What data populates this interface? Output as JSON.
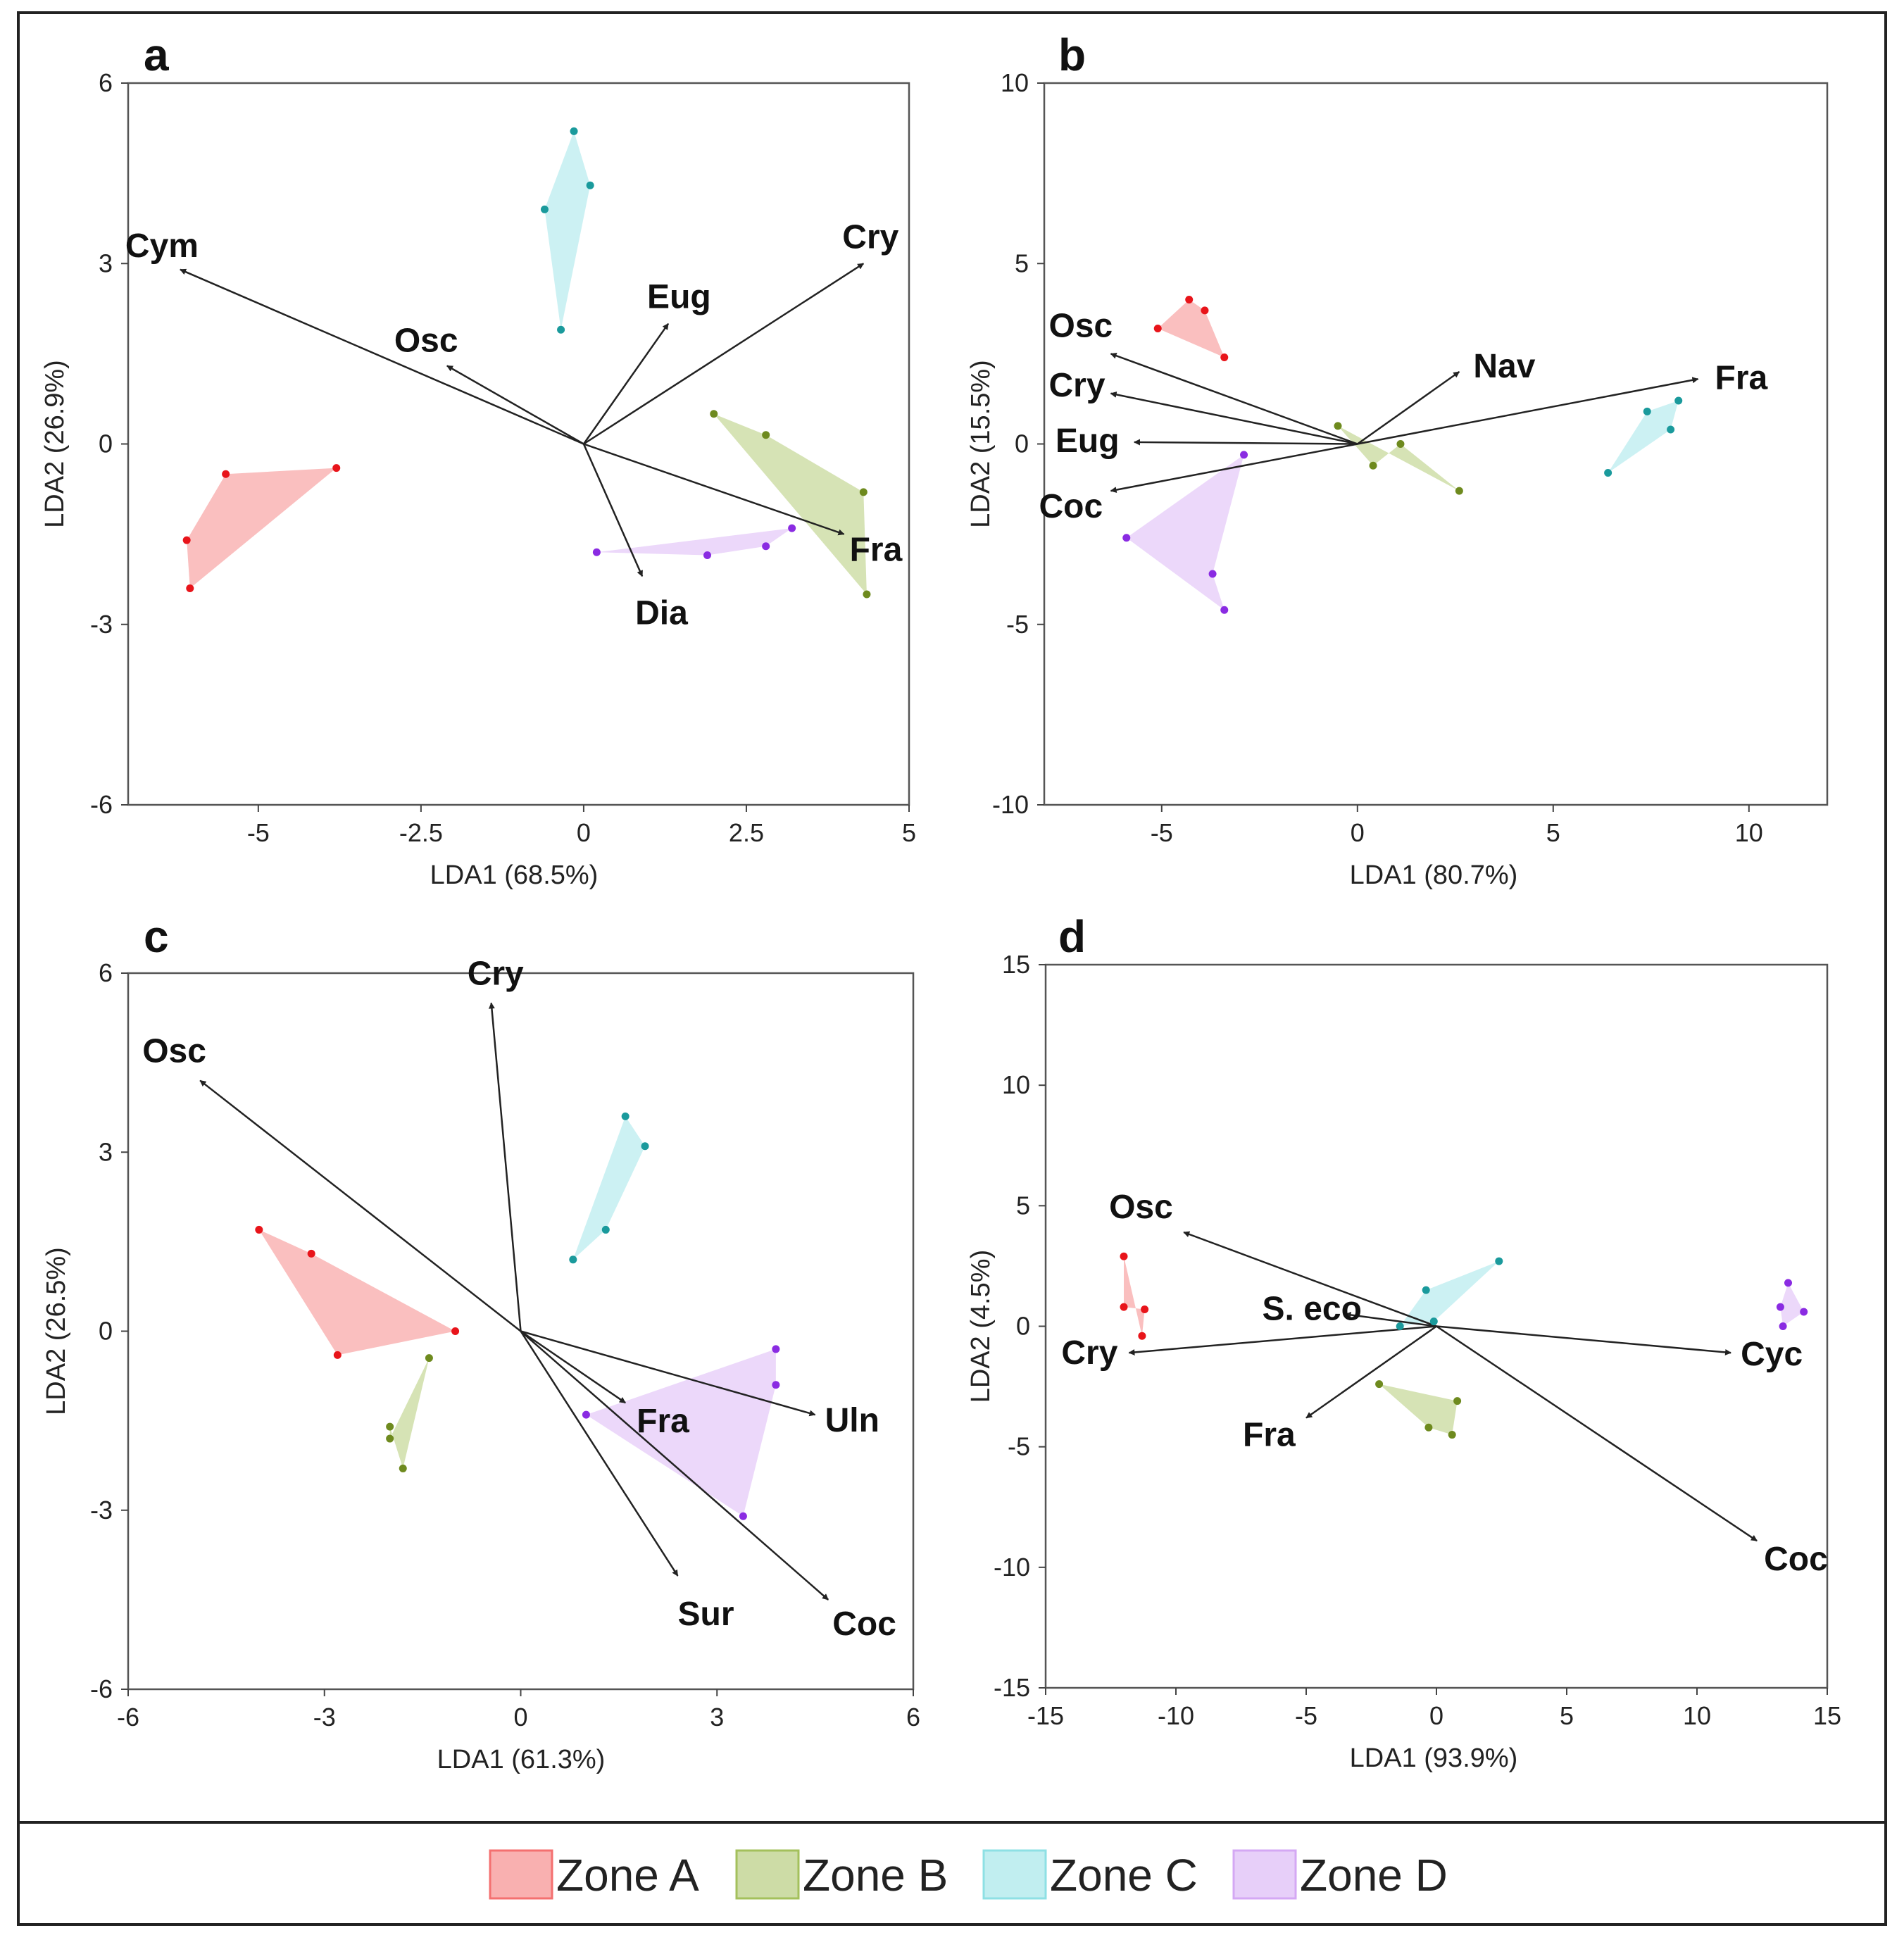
{
  "colors": {
    "Zone A": "#f47070",
    "Zone B": "#a4c05c",
    "Zone C": "#8ee0e4",
    "Zone D": "#d4a8f4",
    "Zone A point": "#e8141a",
    "Zone B point": "#6e8a1e",
    "Zone C point": "#1a9a9c",
    "Zone D point": "#8a2be2"
  },
  "legend": {
    "items": [
      "Zone A",
      "Zone B",
      "Zone C",
      "Zone D"
    ]
  },
  "chart_data": [
    {
      "type": "scatter",
      "panel": "a",
      "xlabel": "LDA1 (68.5%)",
      "ylabel": "LDA2 (26.9%)",
      "xlim": [
        -7,
        5
      ],
      "ylim": [
        -6,
        6
      ],
      "xticks": [
        -5,
        -2.5,
        0,
        2.5,
        5
      ],
      "xticklabels": [
        "-5",
        "-2.5",
        "0",
        "2.5",
        "5"
      ],
      "yticks": [
        -6,
        -3,
        0,
        3,
        6
      ],
      "yticklabels": [
        "-6",
        "-3",
        "0",
        "3",
        "6"
      ],
      "vectors": [
        {
          "name": "Cym",
          "x": -6.2,
          "y": 2.9
        },
        {
          "name": "Osc",
          "x": -2.1,
          "y": 1.3
        },
        {
          "name": "Eug",
          "x": 1.3,
          "y": 2.0
        },
        {
          "name": "Cry",
          "x": 4.3,
          "y": 3.0
        },
        {
          "name": "Fra",
          "x": 4.0,
          "y": -1.5
        },
        {
          "name": "Dia",
          "x": 0.9,
          "y": -2.2
        }
      ],
      "series": [
        {
          "name": "Zone A",
          "points": [
            [
              -6.1,
              -1.6
            ],
            [
              -6.05,
              -2.4
            ],
            [
              -3.8,
              -0.4
            ],
            [
              -5.5,
              -0.5
            ]
          ]
        },
        {
          "name": "Zone B",
          "points": [
            [
              2.0,
              0.5
            ],
            [
              2.8,
              0.15
            ],
            [
              4.3,
              -0.8
            ],
            [
              4.35,
              -2.5
            ]
          ]
        },
        {
          "name": "Zone C",
          "points": [
            [
              -0.6,
              3.9
            ],
            [
              -0.15,
              5.2
            ],
            [
              0.1,
              4.3
            ],
            [
              -0.35,
              1.9
            ]
          ]
        },
        {
          "name": "Zone D",
          "points": [
            [
              0.2,
              -1.8
            ],
            [
              1.9,
              -1.85
            ],
            [
              2.8,
              -1.7
            ],
            [
              3.2,
              -1.4
            ]
          ]
        }
      ]
    },
    {
      "type": "scatter",
      "panel": "b",
      "xlabel": "LDA1 (80.7%)",
      "ylabel": "LDA2 (15.5%)",
      "xlim": [
        -8,
        12
      ],
      "ylim": [
        -10,
        10
      ],
      "xticks": [
        -5,
        0,
        5,
        10
      ],
      "xticklabels": [
        "-5",
        "0",
        "5",
        "10"
      ],
      "yticks": [
        -10,
        -5,
        0,
        5,
        10
      ],
      "yticklabels": [
        "-10",
        "-5",
        "0",
        "5",
        "10"
      ],
      "vectors": [
        {
          "name": "Osc",
          "x": -6.3,
          "y": 2.5
        },
        {
          "name": "Cry",
          "x": -6.3,
          "y": 1.4
        },
        {
          "name": "Eug",
          "x": -5.7,
          "y": 0.05
        },
        {
          "name": "Coc",
          "x": -6.3,
          "y": -1.3
        },
        {
          "name": "Nav",
          "x": 2.6,
          "y": 2.0
        },
        {
          "name": "Fra",
          "x": 8.7,
          "y": 1.8
        }
      ],
      "series": [
        {
          "name": "Zone A",
          "points": [
            [
              -5.1,
              3.2
            ],
            [
              -4.3,
              4.0
            ],
            [
              -3.9,
              3.7
            ],
            [
              -3.4,
              2.4
            ]
          ]
        },
        {
          "name": "Zone B",
          "points": [
            [
              -0.5,
              0.5
            ],
            [
              0.4,
              -0.6
            ],
            [
              1.1,
              0.0
            ],
            [
              2.6,
              -1.3
            ]
          ]
        },
        {
          "name": "Zone C",
          "points": [
            [
              6.4,
              -0.8
            ],
            [
              7.4,
              0.9
            ],
            [
              8.2,
              1.2
            ],
            [
              8.0,
              0.4
            ]
          ]
        },
        {
          "name": "Zone D",
          "points": [
            [
              -5.9,
              -2.6
            ],
            [
              -2.9,
              -0.3
            ],
            [
              -3.7,
              -3.6
            ],
            [
              -3.4,
              -4.6
            ]
          ]
        }
      ]
    },
    {
      "type": "scatter",
      "panel": "c",
      "xlabel": "LDA1 (61.3%)",
      "ylabel": "LDA2 (26.5%)",
      "xlim": [
        -6,
        6
      ],
      "ylim": [
        -6,
        6
      ],
      "xticks": [
        -6,
        -3,
        0,
        3,
        6
      ],
      "xticklabels": [
        "-6",
        "-3",
        "0",
        "3",
        "6"
      ],
      "yticks": [
        -6,
        -3,
        0,
        3,
        6
      ],
      "yticklabels": [
        "-6",
        "-3",
        "0",
        "3",
        "6"
      ],
      "vectors": [
        {
          "name": "Osc",
          "x": -4.9,
          "y": 4.2
        },
        {
          "name": "Cry",
          "x": -0.45,
          "y": 5.5
        },
        {
          "name": "Fra",
          "x": 1.6,
          "y": -1.2
        },
        {
          "name": "Uln",
          "x": 4.5,
          "y": -1.4
        },
        {
          "name": "Sur",
          "x": 2.4,
          "y": -4.1
        },
        {
          "name": "Coc",
          "x": 4.7,
          "y": -4.5
        }
      ],
      "series": [
        {
          "name": "Zone A",
          "points": [
            [
              -4.0,
              1.7
            ],
            [
              -3.2,
              1.3
            ],
            [
              -1.0,
              0.0
            ],
            [
              -2.8,
              -0.4
            ]
          ]
        },
        {
          "name": "Zone B",
          "points": [
            [
              -2.0,
              -1.6
            ],
            [
              -2.0,
              -1.8
            ],
            [
              -1.4,
              -0.45
            ],
            [
              -1.8,
              -2.3
            ]
          ]
        },
        {
          "name": "Zone C",
          "points": [
            [
              0.8,
              1.2
            ],
            [
              1.6,
              3.6
            ],
            [
              1.9,
              3.1
            ],
            [
              1.3,
              1.7
            ]
          ]
        },
        {
          "name": "Zone D",
          "points": [
            [
              1.0,
              -1.4
            ],
            [
              3.9,
              -0.3
            ],
            [
              3.9,
              -0.9
            ],
            [
              3.4,
              -3.1
            ]
          ]
        }
      ]
    },
    {
      "type": "scatter",
      "panel": "d",
      "xlabel": "LDA1 (93.9%)",
      "ylabel": "LDA2 (4.5%)",
      "xlim": [
        -15,
        15
      ],
      "ylim": [
        -15,
        15
      ],
      "xticks": [
        -15,
        -10,
        -5,
        0,
        5,
        10,
        15
      ],
      "xticklabels": [
        "-15",
        "-10",
        "-5",
        "0",
        "5",
        "10",
        "15"
      ],
      "yticks": [
        -15,
        -10,
        -5,
        0,
        5,
        10,
        15
      ],
      "yticklabels": [
        "-15",
        "-10",
        "-5",
        "0",
        "5",
        "10",
        "15"
      ],
      "vectors": [
        {
          "name": "Osc",
          "x": -9.7,
          "y": 3.9
        },
        {
          "name": "S. eco",
          "x": -3.5,
          "y": 0.5
        },
        {
          "name": "Cry",
          "x": -11.8,
          "y": -1.1
        },
        {
          "name": "Fra",
          "x": -5.0,
          "y": -3.8
        },
        {
          "name": "Cyc",
          "x": 11.3,
          "y": -1.1
        },
        {
          "name": "Coc",
          "x": 12.3,
          "y": -8.9
        }
      ],
      "series": [
        {
          "name": "Zone A",
          "points": [
            [
              -12.0,
              2.9
            ],
            [
              -12.0,
              0.8
            ],
            [
              -11.2,
              0.7
            ],
            [
              -11.3,
              -0.4
            ]
          ]
        },
        {
          "name": "Zone B",
          "points": [
            [
              -2.2,
              -2.4
            ],
            [
              -0.3,
              -4.2
            ],
            [
              0.6,
              -4.5
            ],
            [
              0.8,
              -3.1
            ]
          ]
        },
        {
          "name": "Zone C",
          "points": [
            [
              -1.4,
              0.0
            ],
            [
              -0.4,
              1.5
            ],
            [
              2.4,
              2.7
            ],
            [
              -0.1,
              0.2
            ]
          ]
        },
        {
          "name": "Zone D",
          "points": [
            [
              13.2,
              0.8
            ],
            [
              13.5,
              1.8
            ],
            [
              14.1,
              0.6
            ],
            [
              13.3,
              0.0
            ]
          ]
        }
      ]
    }
  ]
}
